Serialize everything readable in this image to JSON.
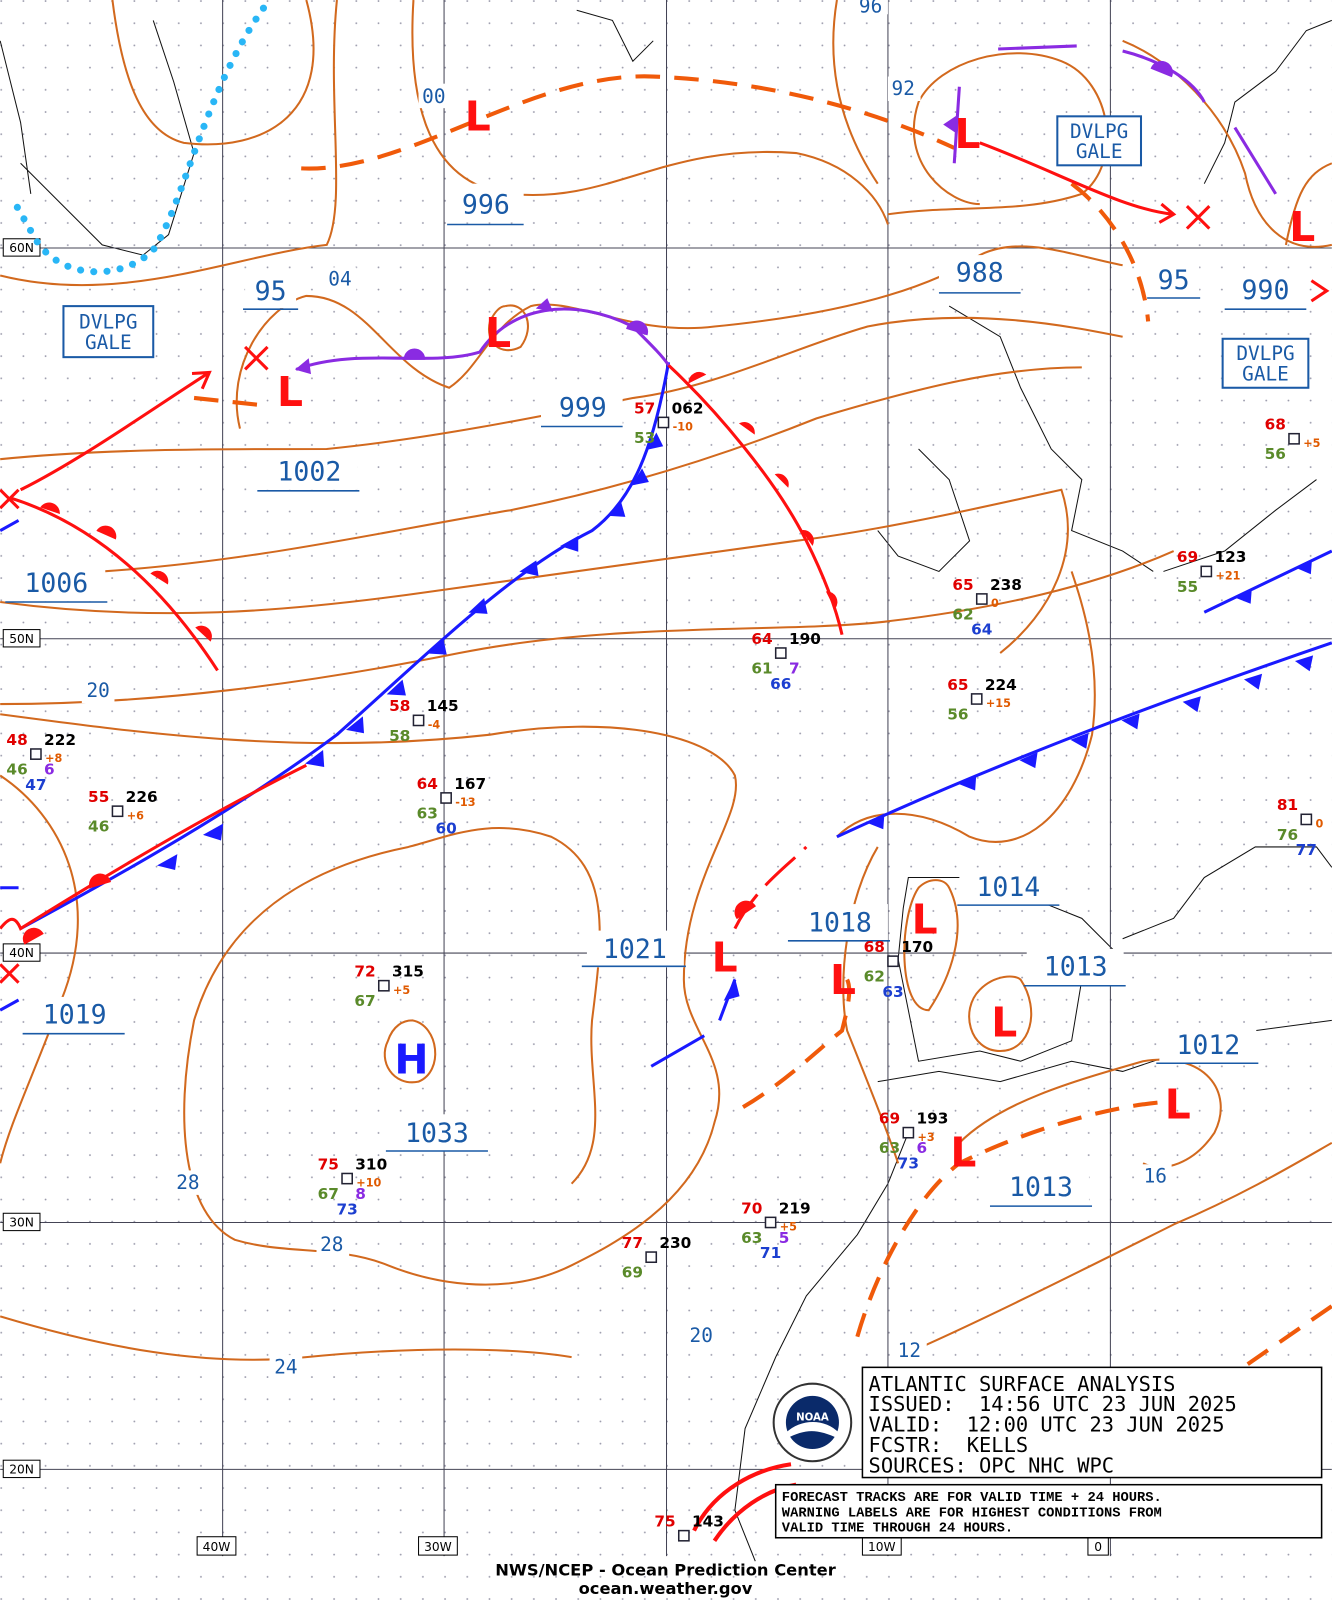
{
  "map": {
    "grid_labels": {
      "lat": [
        "60N",
        "50N",
        "40N",
        "30N",
        "20N"
      ],
      "lon": [
        "40W",
        "30W",
        "10W",
        "0"
      ]
    },
    "pressure_centers": [
      "L",
      "L",
      "L",
      "L",
      "L",
      "L",
      "L",
      "L",
      "L",
      "L",
      "L",
      "H"
    ],
    "pressure_labels": [
      "996",
      "95",
      "1002",
      "999",
      "1006",
      "988",
      "95",
      "990",
      "1021",
      "1018",
      "1014",
      "1013",
      "1012",
      "1013",
      "1019",
      "1033"
    ],
    "isobar_labels": [
      "00",
      "04",
      "92",
      "96",
      "20",
      "28",
      "28",
      "24",
      "20",
      "12",
      "16"
    ],
    "warnings": [
      [
        "DVLPG",
        "GALE"
      ],
      [
        "DVLPG",
        "GALE"
      ],
      [
        "DVLPG",
        "GALE"
      ]
    ],
    "stations": [
      {
        "temp": "57",
        "pres": "062",
        "tend": "-10",
        "dew": "53"
      },
      {
        "temp": "64",
        "pres": "190",
        "dew": "61",
        "period": "7",
        "height": "66"
      },
      {
        "temp": "65",
        "pres": "238",
        "tend": "0",
        "dew": "62",
        "height": "64"
      },
      {
        "temp": "65",
        "pres": "224",
        "tend": "+15",
        "dew": "56"
      },
      {
        "temp": "58",
        "pres": "145",
        "tend": "-4",
        "dew": "58"
      },
      {
        "temp": "64",
        "pres": "167",
        "tend": "-13",
        "dew": "63",
        "height": "60"
      },
      {
        "temp": "48",
        "pres": "222",
        "tend": "+8",
        "dew": "46",
        "period": "6",
        "height": "47"
      },
      {
        "temp": "55",
        "pres": "226",
        "tend": "+6",
        "dew": "46"
      },
      {
        "temp": "72",
        "pres": "315",
        "tend": "+5",
        "dew": "67"
      },
      {
        "temp": "75",
        "pres": "310",
        "tend": "+10",
        "dew": "67",
        "period": "8",
        "height": "73"
      },
      {
        "temp": "77",
        "pres": "230",
        "dew": "69"
      },
      {
        "temp": "70",
        "pres": "219",
        "tend": "+5",
        "dew": "63",
        "period": "5",
        "height": "71"
      },
      {
        "temp": "68",
        "pres": "170",
        "dew": "62",
        "height": "63"
      },
      {
        "temp": "69",
        "pres": "193",
        "tend": "+3",
        "dew": "63",
        "period": "6",
        "height": "73"
      },
      {
        "temp": "69",
        "pres": "123",
        "tend": "+21",
        "dew": "55"
      },
      {
        "temp": "68",
        "tend": "+5",
        "dew": "56"
      },
      {
        "temp": "81",
        "tend": "0",
        "dew": "76",
        "height": "77"
      },
      {
        "temp": "75",
        "pres": "143"
      }
    ]
  },
  "title_block": {
    "lines": [
      "ATLANTIC SURFACE ANALYSIS",
      "ISSUED:  14:56 UTC 23 JUN 2025",
      "VALID:  12:00 UTC 23 JUN 2025",
      "FCSTR:  KELLS",
      "SOURCES: OPC NHC WPC"
    ]
  },
  "note": {
    "lines": [
      "FORECAST TRACKS ARE FOR VALID TIME + 24 HOURS.",
      "WARNING LABELS ARE FOR HIGHEST CONDITIONS FROM",
      "VALID TIME THROUGH 24 HOURS."
    ]
  },
  "footer": {
    "agency": "NWS/NCEP - Ocean Prediction Center",
    "url": "ocean.weather.gov"
  },
  "logo": "NOAA"
}
